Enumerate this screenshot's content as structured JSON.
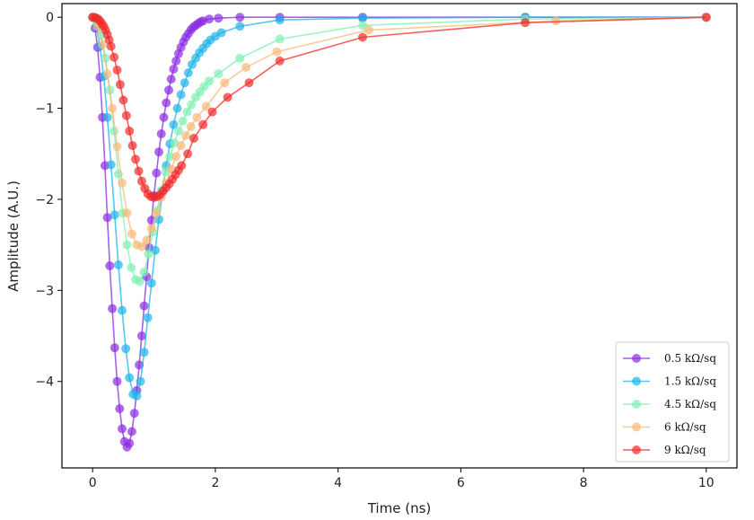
{
  "chart_data": {
    "type": "line",
    "title": "",
    "xlabel": "Time (ns)",
    "ylabel": "Amplitude (A.U.)",
    "xlim": [
      -0.5,
      10.5
    ],
    "ylim": [
      -4.95,
      0.15
    ],
    "xticks": [
      0,
      2,
      4,
      6,
      8,
      10
    ],
    "yticks": [
      0,
      -1,
      -2,
      -3,
      -4
    ],
    "xtick_labels": [
      "0",
      "2",
      "4",
      "6",
      "8",
      "10"
    ],
    "ytick_labels": [
      "0",
      "−1",
      "−2",
      "−3",
      "−4"
    ],
    "grid": false,
    "legend_position": "lower-right",
    "series": [
      {
        "name": "0.5 kΩ/sq",
        "color": "#8A2BE2",
        "x": [
          0.0,
          0.04,
          0.08,
          0.12,
          0.16,
          0.2,
          0.24,
          0.28,
          0.32,
          0.36,
          0.4,
          0.44,
          0.48,
          0.52,
          0.56,
          0.6,
          0.64,
          0.68,
          0.72,
          0.76,
          0.8,
          0.84,
          0.88,
          0.92,
          0.96,
          1.0,
          1.04,
          1.08,
          1.12,
          1.16,
          1.2,
          1.24,
          1.28,
          1.32,
          1.36,
          1.4,
          1.44,
          1.48,
          1.52,
          1.56,
          1.6,
          1.64,
          1.68,
          1.72,
          1.76,
          1.8,
          1.9,
          2.05,
          2.4,
          3.05,
          4.4,
          7.05,
          10.0
        ],
        "y": [
          0.0,
          -0.12,
          -0.33,
          -0.66,
          -1.1,
          -1.63,
          -2.2,
          -2.73,
          -3.2,
          -3.63,
          -4.0,
          -4.3,
          -4.52,
          -4.66,
          -4.72,
          -4.68,
          -4.55,
          -4.35,
          -4.1,
          -3.82,
          -3.5,
          -3.17,
          -2.85,
          -2.53,
          -2.23,
          -1.96,
          -1.71,
          -1.48,
          -1.28,
          -1.1,
          -0.94,
          -0.8,
          -0.68,
          -0.57,
          -0.48,
          -0.4,
          -0.33,
          -0.27,
          -0.22,
          -0.18,
          -0.14,
          -0.11,
          -0.09,
          -0.07,
          -0.05,
          -0.04,
          -0.02,
          -0.01,
          0.0,
          0.0,
          0.0,
          0.0,
          0.0
        ]
      },
      {
        "name": "1.5 kΩ/sq",
        "color": "#1EB4E8",
        "x": [
          0.0,
          0.06,
          0.12,
          0.18,
          0.24,
          0.3,
          0.36,
          0.42,
          0.48,
          0.54,
          0.6,
          0.66,
          0.72,
          0.78,
          0.84,
          0.9,
          0.96,
          1.02,
          1.08,
          1.14,
          1.2,
          1.26,
          1.32,
          1.38,
          1.44,
          1.5,
          1.56,
          1.62,
          1.68,
          1.74,
          1.8,
          1.86,
          1.92,
          2.0,
          2.1,
          2.4,
          3.05,
          4.4,
          7.05,
          10.0
        ],
        "y": [
          0.0,
          -0.1,
          -0.32,
          -0.65,
          -1.1,
          -1.62,
          -2.17,
          -2.72,
          -3.22,
          -3.64,
          -3.96,
          -4.14,
          -4.16,
          -4.0,
          -3.68,
          -3.3,
          -2.92,
          -2.56,
          -2.22,
          -1.91,
          -1.63,
          -1.39,
          -1.18,
          -1.0,
          -0.85,
          -0.72,
          -0.61,
          -0.52,
          -0.45,
          -0.39,
          -0.34,
          -0.29,
          -0.25,
          -0.21,
          -0.17,
          -0.1,
          -0.03,
          -0.01,
          0.0,
          0.0
        ]
      },
      {
        "name": "4.5 kΩ/sq",
        "color": "#7FF0B2",
        "x": [
          0.0,
          0.07,
          0.14,
          0.21,
          0.28,
          0.35,
          0.42,
          0.49,
          0.56,
          0.63,
          0.7,
          0.77,
          0.84,
          0.91,
          0.98,
          1.05,
          1.12,
          1.19,
          1.26,
          1.33,
          1.4,
          1.47,
          1.54,
          1.61,
          1.68,
          1.75,
          1.82,
          1.9,
          2.05,
          2.4,
          3.05,
          4.4,
          7.05,
          10.0
        ],
        "y": [
          0.0,
          -0.05,
          -0.2,
          -0.45,
          -0.8,
          -1.25,
          -1.72,
          -2.15,
          -2.5,
          -2.75,
          -2.88,
          -2.9,
          -2.8,
          -2.6,
          -2.36,
          -2.12,
          -1.9,
          -1.7,
          -1.53,
          -1.38,
          -1.25,
          -1.14,
          -1.04,
          -0.96,
          -0.88,
          -0.82,
          -0.76,
          -0.7,
          -0.62,
          -0.45,
          -0.24,
          -0.09,
          -0.02,
          0.0
        ]
      },
      {
        "name": " 6 kΩ/sq",
        "color": "#F7B97A",
        "x": [
          0.0,
          0.08,
          0.16,
          0.24,
          0.32,
          0.4,
          0.48,
          0.56,
          0.64,
          0.72,
          0.8,
          0.88,
          0.96,
          1.04,
          1.12,
          1.2,
          1.28,
          1.36,
          1.44,
          1.52,
          1.6,
          1.7,
          1.85,
          2.15,
          2.5,
          3.0,
          4.5,
          7.55,
          10.0
        ],
        "y": [
          0.0,
          -0.1,
          -0.3,
          -0.62,
          -1.0,
          -1.42,
          -1.82,
          -2.15,
          -2.38,
          -2.5,
          -2.52,
          -2.45,
          -2.32,
          -2.15,
          -1.98,
          -1.82,
          -1.67,
          -1.53,
          -1.41,
          -1.3,
          -1.2,
          -1.1,
          -0.98,
          -0.72,
          -0.55,
          -0.38,
          -0.14,
          -0.04,
          0.0
        ]
      },
      {
        "name": " 9 kΩ/sq",
        "color": "#F02A2A",
        "x": [
          0.0,
          0.03,
          0.06,
          0.09,
          0.12,
          0.15,
          0.18,
          0.21,
          0.24,
          0.27,
          0.3,
          0.35,
          0.4,
          0.45,
          0.5,
          0.55,
          0.6,
          0.65,
          0.7,
          0.75,
          0.8,
          0.85,
          0.9,
          0.95,
          1.0,
          1.05,
          1.1,
          1.15,
          1.2,
          1.25,
          1.3,
          1.35,
          1.4,
          1.45,
          1.55,
          1.65,
          1.8,
          1.95,
          2.2,
          2.55,
          3.05,
          4.4,
          7.05,
          10.0
        ],
        "y": [
          0.0,
          0.0,
          -0.01,
          -0.02,
          -0.04,
          -0.07,
          -0.1,
          -0.14,
          -0.19,
          -0.25,
          -0.32,
          -0.44,
          -0.58,
          -0.74,
          -0.91,
          -1.08,
          -1.25,
          -1.41,
          -1.56,
          -1.69,
          -1.8,
          -1.88,
          -1.94,
          -1.97,
          -1.98,
          -1.97,
          -1.95,
          -1.91,
          -1.87,
          -1.83,
          -1.78,
          -1.73,
          -1.68,
          -1.63,
          -1.5,
          -1.33,
          -1.18,
          -1.04,
          -0.88,
          -0.72,
          -0.48,
          -0.22,
          -0.06,
          0.0
        ]
      }
    ]
  }
}
